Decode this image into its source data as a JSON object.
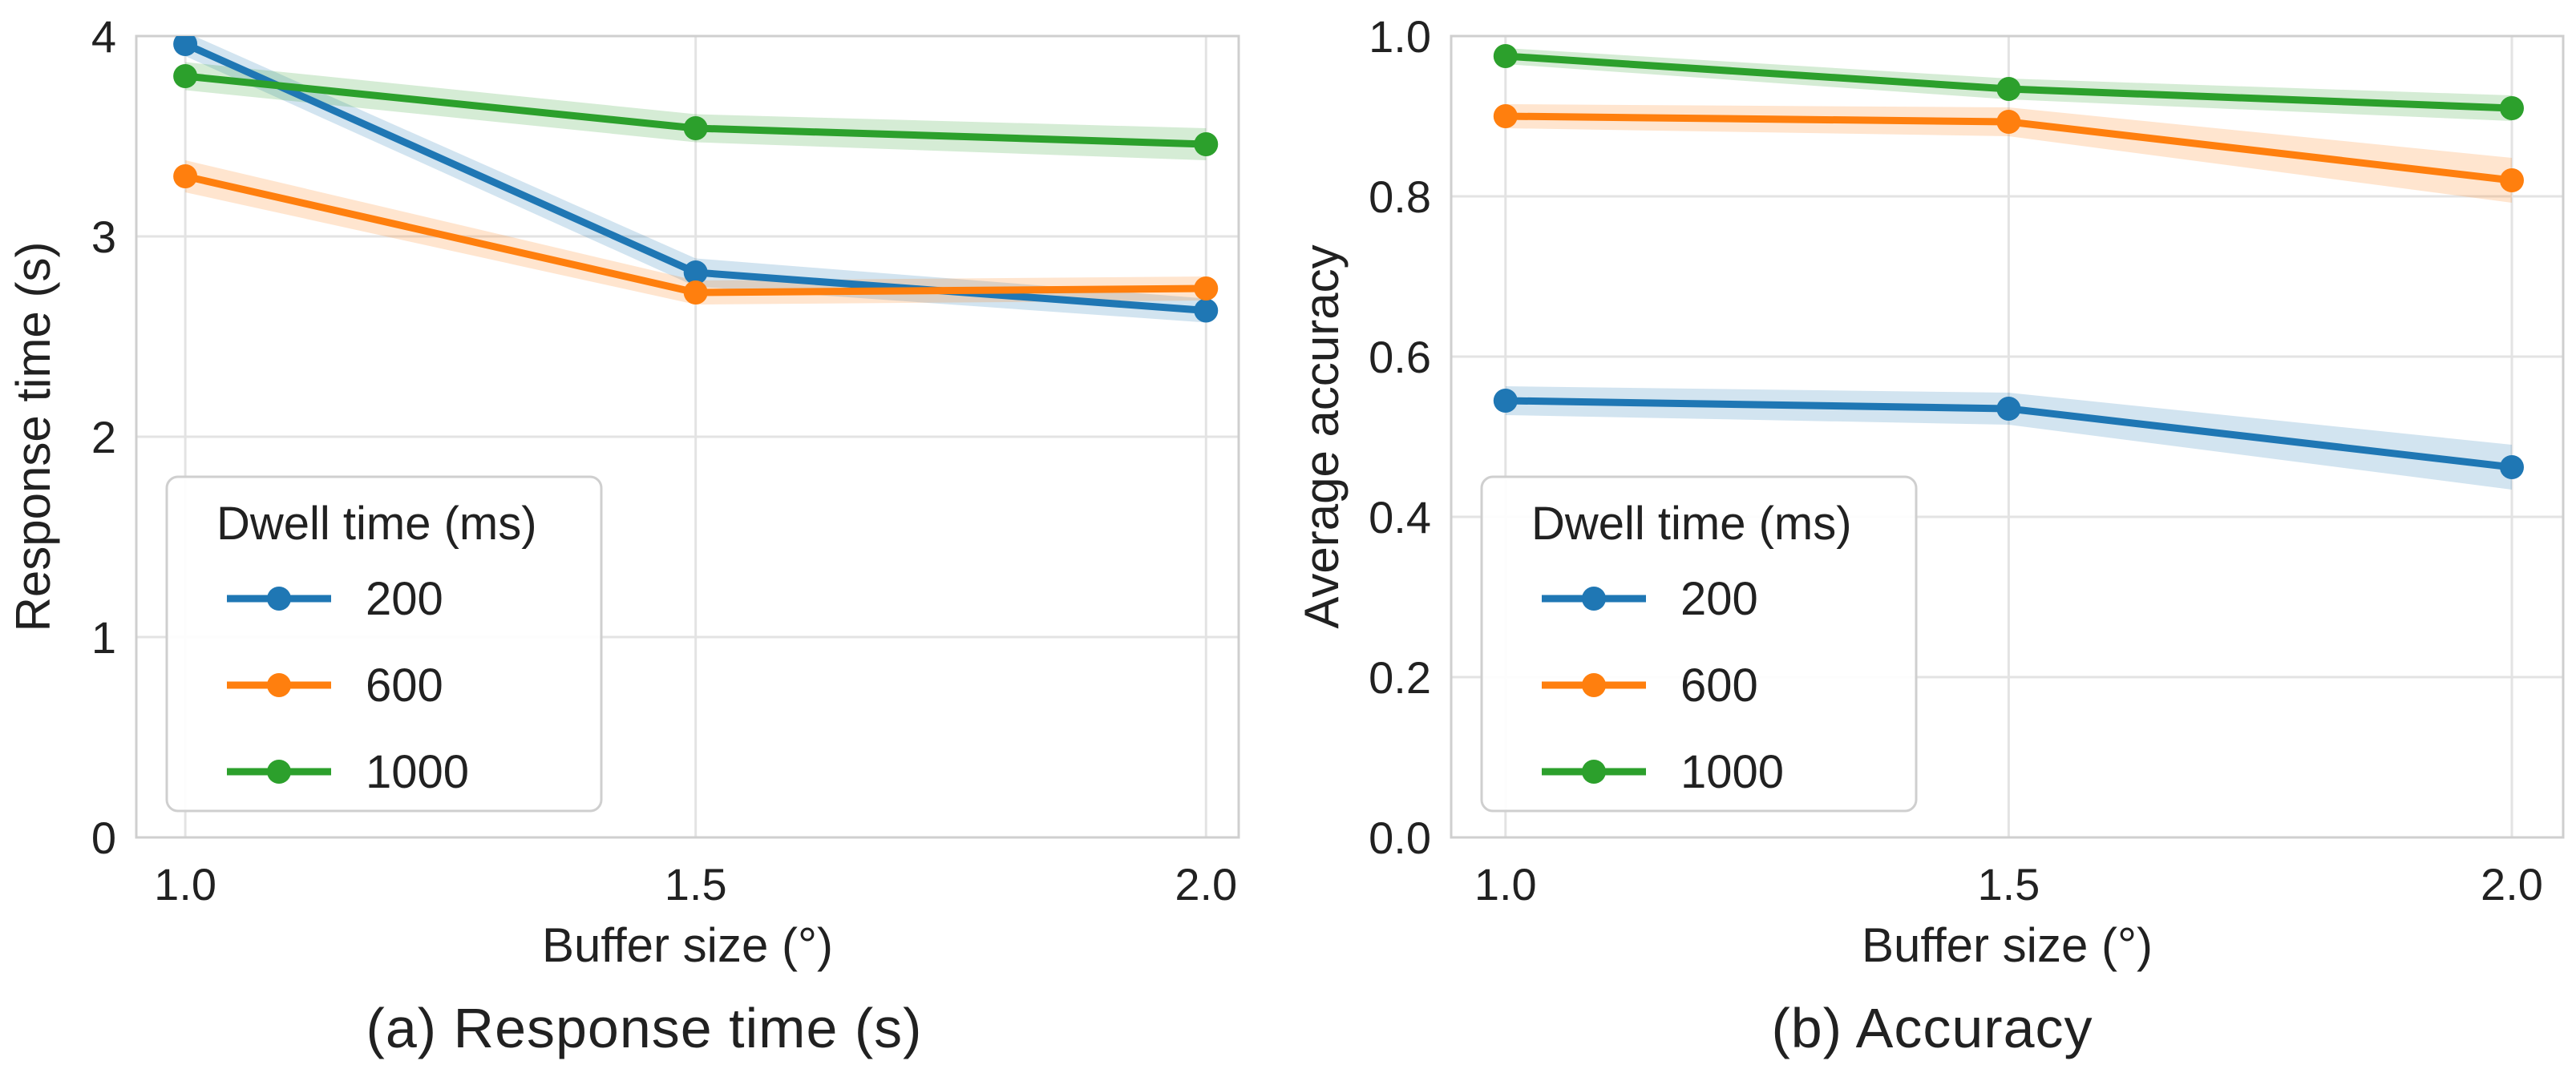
{
  "figure": {
    "background": "#ffffff",
    "panel_a_caption": "(a) Response time (s)",
    "panel_b_caption": "(b) Accuracy"
  },
  "theme": {
    "grid_color": "#e3e3e3",
    "spine_color": "#cfcfcf",
    "text_color": "#212121",
    "legend_bg": "#ffffff",
    "band_opacity": 0.2,
    "accent_blue": "#1f77b4",
    "accent_orange": "#ff7f0e",
    "accent_green": "#2ca02c"
  },
  "chart_data": [
    {
      "type": "line",
      "caption": "(a) Response time (s)",
      "xlabel": "Buffer size (°)",
      "ylabel": "Response time (s)",
      "legend_title": "Dwell time (ms)",
      "legend_position": "lower-left",
      "grid": true,
      "x": [
        1.0,
        1.5,
        2.0
      ],
      "xtick_labels": [
        "1.0",
        "1.5",
        "2.0"
      ],
      "xlim": [
        0.952,
        2.032
      ],
      "ylim": [
        0,
        4
      ],
      "ytick_values": [
        0,
        1,
        2,
        3,
        4
      ],
      "ytick_labels": [
        "0",
        "1",
        "2",
        "3",
        "4"
      ],
      "series": [
        {
          "name": "200",
          "color": "#1f77b4",
          "values": [
            3.96,
            2.82,
            2.63
          ],
          "ci": [
            0.06,
            0.07,
            0.06
          ]
        },
        {
          "name": "600",
          "color": "#ff7f0e",
          "values": [
            3.3,
            2.72,
            2.74
          ],
          "ci": [
            0.08,
            0.06,
            0.06
          ]
        },
        {
          "name": "1000",
          "color": "#2ca02c",
          "values": [
            3.8,
            3.54,
            3.46
          ],
          "ci": [
            0.07,
            0.07,
            0.08
          ]
        }
      ]
    },
    {
      "type": "line",
      "caption": "(b) Accuracy",
      "xlabel": "Buffer size (°)",
      "ylabel": "Average accuracy",
      "legend_title": "Dwell time (ms)",
      "legend_position": "lower-left",
      "grid": true,
      "x": [
        1.0,
        1.5,
        2.0
      ],
      "xtick_labels": [
        "1.0",
        "1.5",
        "2.0"
      ],
      "xlim": [
        0.946,
        2.051
      ],
      "ylim": [
        0,
        1.0
      ],
      "ytick_values": [
        0,
        0.2,
        0.4,
        0.6,
        0.8,
        1.0
      ],
      "ytick_labels": [
        "0.0",
        "0.2",
        "0.4",
        "0.6",
        "0.8",
        "1.0"
      ],
      "series": [
        {
          "name": "200",
          "color": "#1f77b4",
          "values": [
            0.545,
            0.535,
            0.462
          ],
          "ci": [
            0.018,
            0.02,
            0.028
          ]
        },
        {
          "name": "600",
          "color": "#ff7f0e",
          "values": [
            0.9,
            0.893,
            0.82
          ],
          "ci": [
            0.015,
            0.018,
            0.028
          ]
        },
        {
          "name": "1000",
          "color": "#2ca02c",
          "values": [
            0.975,
            0.934,
            0.91
          ],
          "ci": [
            0.01,
            0.013,
            0.016
          ]
        }
      ]
    }
  ]
}
